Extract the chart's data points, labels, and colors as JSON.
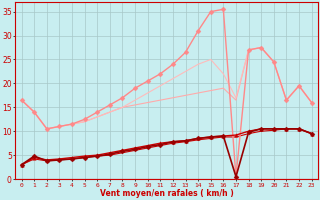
{
  "xlabel": "Vent moyen/en rafales ( km/h )",
  "bg_color": "#c8eef0",
  "grid_color": "#a8c8c8",
  "xlim": [
    -0.5,
    23.5
  ],
  "ylim": [
    0,
    37
  ],
  "yticks": [
    0,
    5,
    10,
    15,
    20,
    25,
    30,
    35
  ],
  "xticks": [
    0,
    1,
    2,
    3,
    4,
    5,
    6,
    7,
    8,
    9,
    10,
    11,
    12,
    13,
    14,
    15,
    16,
    17,
    18,
    19,
    20,
    21,
    22,
    23
  ],
  "series": [
    {
      "x": [
        0,
        1,
        2,
        3,
        4,
        5,
        6,
        7,
        8,
        9,
        10,
        11,
        12,
        13,
        14,
        15,
        16,
        17,
        18,
        19,
        20,
        21,
        22,
        23
      ],
      "y": [
        16.5,
        14.0,
        10.5,
        11.0,
        11.5,
        12.0,
        13.0,
        14.0,
        15.0,
        15.5,
        16.0,
        16.5,
        17.0,
        17.5,
        18.0,
        18.5,
        19.0,
        16.5,
        27.0,
        27.5,
        24.5,
        16.5,
        19.5,
        16.0
      ],
      "color": "#ffaaaa",
      "lw": 0.8,
      "marker": null,
      "ms": 0
    },
    {
      "x": [
        0,
        1,
        2,
        3,
        4,
        5,
        6,
        7,
        8,
        9,
        10,
        11,
        12,
        13,
        14,
        15,
        16,
        17,
        18,
        19,
        20,
        21,
        22,
        23
      ],
      "y": [
        16.5,
        14.0,
        10.5,
        11.0,
        11.5,
        12.5,
        14.0,
        15.5,
        17.0,
        19.0,
        20.5,
        22.0,
        24.0,
        26.5,
        31.0,
        35.0,
        35.5,
        0.5,
        27.0,
        27.5,
        24.5,
        16.5,
        19.5,
        16.0
      ],
      "color": "#ff8888",
      "lw": 1.0,
      "marker": "D",
      "ms": 2.5
    },
    {
      "x": [
        0,
        1,
        2,
        3,
        4,
        5,
        6,
        7,
        8,
        9,
        10,
        11,
        12,
        13,
        14,
        15,
        16,
        17,
        18,
        19,
        20,
        21,
        22,
        23
      ],
      "y": [
        16.5,
        14.0,
        10.5,
        11.0,
        11.5,
        12.0,
        13.0,
        14.0,
        15.0,
        16.5,
        18.0,
        19.5,
        21.0,
        22.5,
        24.0,
        25.0,
        22.0,
        17.0,
        27.0,
        27.5,
        24.5,
        16.5,
        19.5,
        16.0
      ],
      "color": "#ffbbbb",
      "lw": 0.8,
      "marker": null,
      "ms": 0
    },
    {
      "x": [
        0,
        1,
        2,
        3,
        4,
        5,
        6,
        7,
        8,
        9,
        10,
        11,
        12,
        13,
        14,
        15,
        16,
        17,
        18,
        19,
        20,
        21,
        22,
        23
      ],
      "y": [
        3.0,
        4.5,
        4.0,
        4.2,
        4.5,
        4.8,
        5.0,
        5.5,
        6.0,
        6.5,
        7.0,
        7.5,
        7.8,
        8.0,
        8.5,
        8.8,
        9.0,
        9.2,
        10.0,
        10.5,
        10.5,
        10.5,
        10.5,
        9.5
      ],
      "color": "#cc0000",
      "lw": 1.0,
      "marker": "^",
      "ms": 2.5
    },
    {
      "x": [
        0,
        1,
        2,
        3,
        4,
        5,
        6,
        7,
        8,
        9,
        10,
        11,
        12,
        13,
        14,
        15,
        16,
        17,
        18,
        19,
        20,
        21,
        22,
        23
      ],
      "y": [
        3.0,
        4.8,
        3.8,
        4.0,
        4.2,
        4.5,
        4.8,
        5.2,
        5.8,
        6.2,
        6.8,
        7.2,
        7.8,
        8.0,
        8.5,
        8.8,
        9.0,
        0.5,
        9.8,
        10.5,
        10.5,
        10.5,
        10.5,
        9.5
      ],
      "color": "#990000",
      "lw": 1.2,
      "marker": "D",
      "ms": 2.5
    },
    {
      "x": [
        0,
        1,
        2,
        3,
        4,
        5,
        6,
        7,
        8,
        9,
        10,
        11,
        12,
        13,
        14,
        15,
        16,
        17,
        18,
        19,
        20,
        21,
        22,
        23
      ],
      "y": [
        3.0,
        4.2,
        3.8,
        4.0,
        4.2,
        4.5,
        4.8,
        5.0,
        5.5,
        6.0,
        6.5,
        7.0,
        7.5,
        7.8,
        8.2,
        8.5,
        8.8,
        8.8,
        9.5,
        10.0,
        10.2,
        10.5,
        10.5,
        9.5
      ],
      "color": "#cc0000",
      "lw": 0.8,
      "marker": null,
      "ms": 0
    }
  ]
}
